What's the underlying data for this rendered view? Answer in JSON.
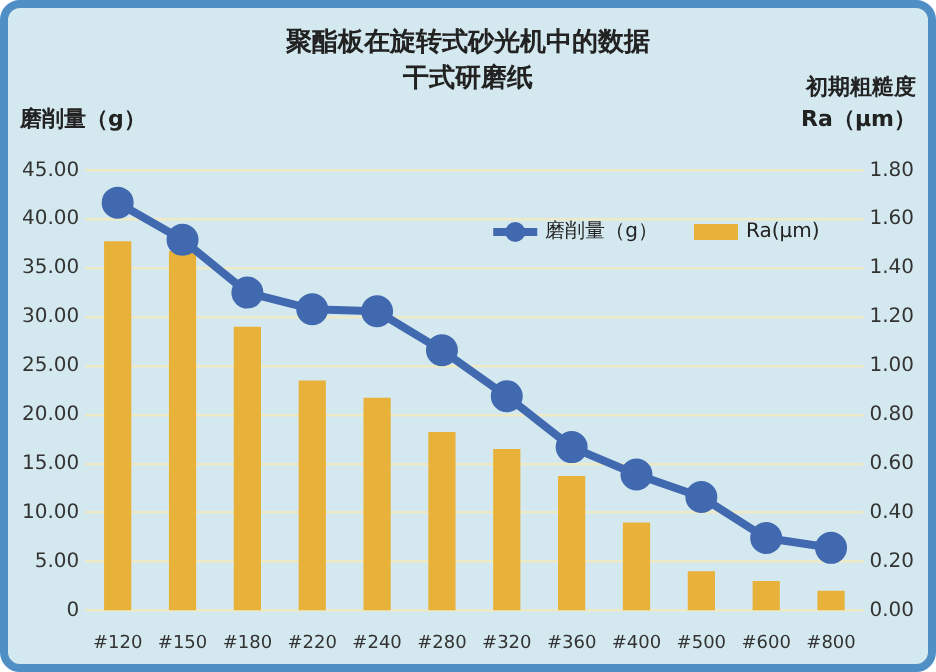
{
  "chart_data": {
    "type": "bar",
    "title": "聚酯板在旋转式砂光机中的数据",
    "subtitle": "干式研磨纸",
    "ylabel": "磨削量（g）",
    "y2label": "初期粗糙度 Ra（μm）",
    "categories": [
      "#120",
      "#150",
      "#180",
      "#220",
      "#240",
      "#280",
      "#320",
      "#360",
      "#400",
      "#500",
      "#600",
      "#800"
    ],
    "series": [
      {
        "name": "磨削量（g）",
        "type": "line",
        "color": "#4169b0",
        "values": [
          41.7,
          37.9,
          32.5,
          30.8,
          30.6,
          26.6,
          21.9,
          16.7,
          13.9,
          11.6,
          7.4,
          6.4
        ]
      },
      {
        "name": "Ra(μm)",
        "axis": "y2",
        "color": "#e8b23a",
        "values": [
          1.51,
          1.47,
          1.16,
          0.94,
          0.87,
          0.73,
          0.66,
          0.55,
          0.36,
          0.16,
          0.12,
          0.08
        ]
      }
    ],
    "ylim": [
      0,
      45
    ],
    "yticks": [
      {
        "value": 0,
        "label": "0"
      },
      {
        "value": 5,
        "label": "5.00"
      },
      {
        "value": 10,
        "label": "10.00"
      },
      {
        "value": 15,
        "label": "15.00"
      },
      {
        "value": 20,
        "label": "20.00"
      },
      {
        "value": 25,
        "label": "25.00"
      },
      {
        "value": 30,
        "label": "30.00"
      },
      {
        "value": 35,
        "label": "35.00"
      },
      {
        "value": 40,
        "label": "40.00"
      },
      {
        "value": 45,
        "label": "45.00"
      }
    ],
    "y2lim": [
      0,
      1.8
    ],
    "y2ticks": [
      {
        "value": 0,
        "label": "0.00"
      },
      {
        "value": 0.2,
        "label": "0.20"
      },
      {
        "value": 0.4,
        "label": "0.40"
      },
      {
        "value": 0.6,
        "label": "0.60"
      },
      {
        "value": 0.8,
        "label": "0.80"
      },
      {
        "value": 1,
        "label": "1.00"
      },
      {
        "value": 1.2,
        "label": "1.20"
      },
      {
        "value": 1.4,
        "label": "1.40"
      },
      {
        "value": 1.6,
        "label": "1.60"
      },
      {
        "value": 1.8,
        "label": "1.80"
      }
    ],
    "grid": "y",
    "legend": "top right",
    "marker": "circle"
  }
}
